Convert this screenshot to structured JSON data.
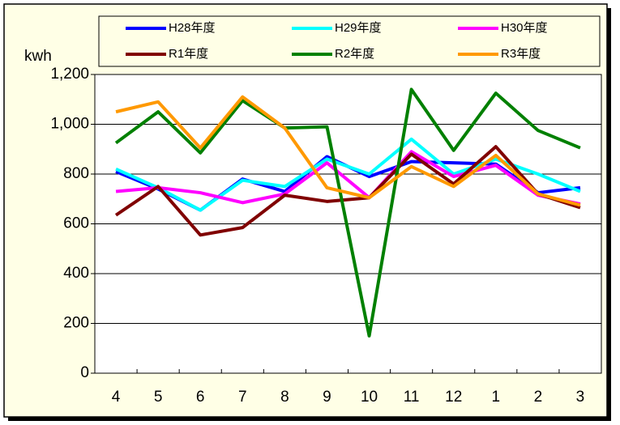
{
  "chart_data": {
    "type": "line",
    "y_label": "kwh",
    "categories": [
      "4",
      "5",
      "6",
      "7",
      "8",
      "9",
      "10",
      "11",
      "12",
      "1",
      "2",
      "3"
    ],
    "series": [
      {
        "name": "H28年度",
        "color": "#0000ff",
        "values": [
          810,
          740,
          655,
          780,
          730,
          870,
          790,
          850,
          845,
          840,
          725,
          745
        ]
      },
      {
        "name": "H29年度",
        "color": "#00ffff",
        "values": [
          820,
          745,
          655,
          775,
          750,
          860,
          800,
          940,
          800,
          860,
          800,
          730
        ]
      },
      {
        "name": "H30年度",
        "color": "#ff00ff",
        "values": [
          730,
          745,
          725,
          685,
          720,
          845,
          705,
          890,
          790,
          835,
          715,
          680
        ]
      },
      {
        "name": "R1年度",
        "color": "#800000",
        "values": [
          635,
          750,
          555,
          585,
          715,
          690,
          705,
          880,
          760,
          910,
          720,
          665
        ]
      },
      {
        "name": "R2年度",
        "color": "#008000",
        "values": [
          925,
          1050,
          885,
          1095,
          985,
          990,
          150,
          1140,
          895,
          1125,
          975,
          905
        ]
      },
      {
        "name": "R3年度",
        "color": "#ff9900",
        "values": [
          1050,
          1090,
          905,
          1110,
          985,
          745,
          705,
          830,
          750,
          875,
          720,
          675
        ]
      }
    ],
    "ylim": [
      0,
      1200
    ],
    "yticks": [
      0,
      200,
      400,
      600,
      800,
      {
        "value": 1000,
        "label": "1,000"
      },
      {
        "value": 1200,
        "label": "1,200"
      }
    ],
    "grid": true,
    "legend": "top"
  }
}
